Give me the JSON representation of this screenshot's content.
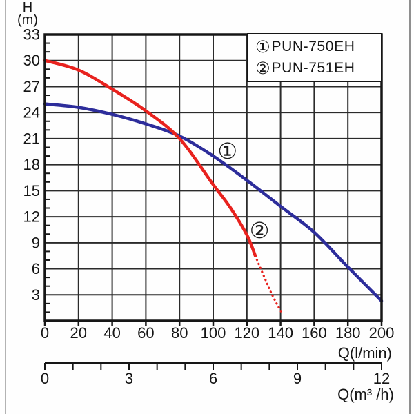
{
  "page": {
    "background": "#fefefe",
    "scan_border_color": "#9a9a9a"
  },
  "chart_data": {
    "type": "line",
    "title": "",
    "grid": true,
    "legend_position": "top-right",
    "y_axis": {
      "title": "H",
      "unit": "(m)",
      "min": 0,
      "max": 33,
      "major_step": 3,
      "minor_step": 1,
      "tick_labels": [
        33,
        30,
        27,
        24,
        21,
        18,
        15,
        12,
        9,
        6,
        3
      ]
    },
    "x_axis": {
      "title": "Q(l/min)",
      "min": 0,
      "max": 200,
      "major_step": 20,
      "tick_labels": [
        0,
        20,
        40,
        60,
        80,
        100,
        120,
        140,
        160,
        180,
        200
      ]
    },
    "x2_axis": {
      "title": "Q(m³ /h)",
      "min": 0,
      "max": 12,
      "major_step": 3,
      "minor_step": 1,
      "tick_labels": [
        0,
        3,
        6,
        9,
        12
      ]
    },
    "legend": {
      "entries": [
        {
          "marker": "①",
          "label": "PUN-750EH"
        },
        {
          "marker": "②",
          "label": "PUN-751EH"
        }
      ]
    },
    "series": [
      {
        "id": 1,
        "marker": "①",
        "name": "PUN-750EH",
        "color": "#2d2d9b",
        "line_style": "solid",
        "points_q_lmin_h_m": [
          [
            0,
            25
          ],
          [
            20,
            24.6
          ],
          [
            40,
            23.8
          ],
          [
            60,
            22.7
          ],
          [
            80,
            21.3
          ],
          [
            100,
            19.0
          ],
          [
            120,
            16.2
          ],
          [
            140,
            13.2
          ],
          [
            160,
            10.2
          ],
          [
            180,
            6.2
          ],
          [
            200,
            2.3
          ]
        ],
        "label_pos": {
          "q": 108.5,
          "h": 19.5
        }
      },
      {
        "id": 2,
        "marker": "②",
        "name": "PUN-751EH",
        "color": "#e8221e",
        "line_style": "solid-then-dotted",
        "points_q_lmin_h_m": [
          [
            0,
            30
          ],
          [
            20,
            28.9
          ],
          [
            40,
            26.7
          ],
          [
            60,
            24.2
          ],
          [
            80,
            21.0
          ],
          [
            100,
            15.7
          ],
          [
            110,
            13.1
          ],
          [
            120,
            9.9
          ],
          [
            125,
            7.5
          ]
        ],
        "dotted_points_q_lmin_h_m": [
          [
            125,
            7.5
          ],
          [
            130,
            5.2
          ],
          [
            135,
            3.0
          ],
          [
            140.5,
            1.0
          ]
        ],
        "label_pos": {
          "q": 127.5,
          "h": 10.3
        }
      }
    ],
    "colors": {
      "grid": "#2b2b2b",
      "axis": "#161616",
      "text": "#151515"
    }
  }
}
